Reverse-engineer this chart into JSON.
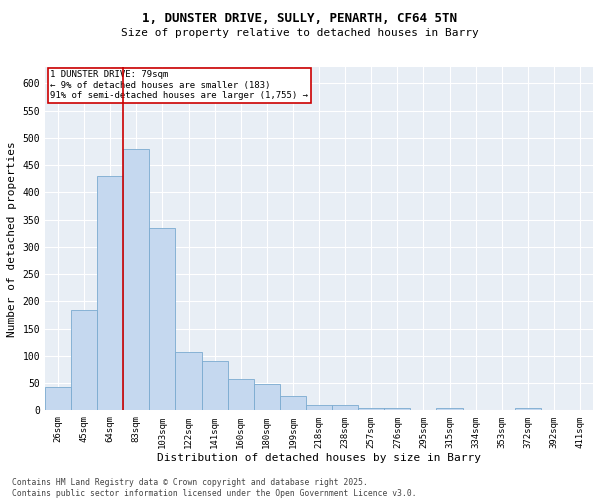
{
  "title_line1": "1, DUNSTER DRIVE, SULLY, PENARTH, CF64 5TN",
  "title_line2": "Size of property relative to detached houses in Barry",
  "xlabel": "Distribution of detached houses by size in Barry",
  "ylabel": "Number of detached properties",
  "bar_labels": [
    "26sqm",
    "45sqm",
    "64sqm",
    "83sqm",
    "103sqm",
    "122sqm",
    "141sqm",
    "160sqm",
    "180sqm",
    "199sqm",
    "218sqm",
    "238sqm",
    "257sqm",
    "276sqm",
    "295sqm",
    "315sqm",
    "334sqm",
    "353sqm",
    "372sqm",
    "392sqm",
    "411sqm"
  ],
  "bar_values": [
    42,
    185,
    430,
    480,
    335,
    108,
    90,
    58,
    48,
    26,
    10,
    10,
    5,
    5,
    0,
    5,
    0,
    0,
    5,
    0,
    0
  ],
  "bar_color": "#c5d8ef",
  "bar_edge_color": "#7aaad0",
  "annotation_line1": "1 DUNSTER DRIVE: 79sqm",
  "annotation_line2": "← 9% of detached houses are smaller (183)",
  "annotation_line3": "91% of semi-detached houses are larger (1,755) →",
  "line_color": "#cc0000",
  "box_edge_color": "#cc0000",
  "ylim": [
    0,
    630
  ],
  "yticks": [
    0,
    50,
    100,
    150,
    200,
    250,
    300,
    350,
    400,
    450,
    500,
    550,
    600
  ],
  "background_color": "#e8eef5",
  "footnote": "Contains HM Land Registry data © Crown copyright and database right 2025.\nContains public sector information licensed under the Open Government Licence v3.0.",
  "title_fontsize": 9,
  "subtitle_fontsize": 8
}
